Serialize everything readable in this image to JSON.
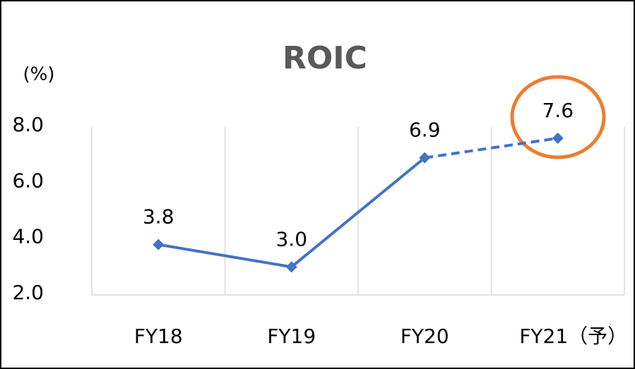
{
  "chart_data": {
    "type": "line",
    "title": "ROIC",
    "y_label": "(%)",
    "categories": [
      "FY18",
      "FY19",
      "FY20",
      "FY21（予）"
    ],
    "values": [
      3.8,
      3.0,
      6.9,
      7.6
    ],
    "value_labels": [
      "3.8",
      "3.0",
      "6.9",
      "7.6"
    ],
    "color": "#4472c4",
    "dashed_from_index": 2,
    "ylim": [
      2,
      8
    ],
    "yticks": [
      {
        "value": 2,
        "label": "2.0"
      },
      {
        "value": 4,
        "label": "4.0"
      },
      {
        "value": 6,
        "label": "6.0"
      },
      {
        "value": 8,
        "label": "8.0"
      }
    ],
    "grid": true
  }
}
